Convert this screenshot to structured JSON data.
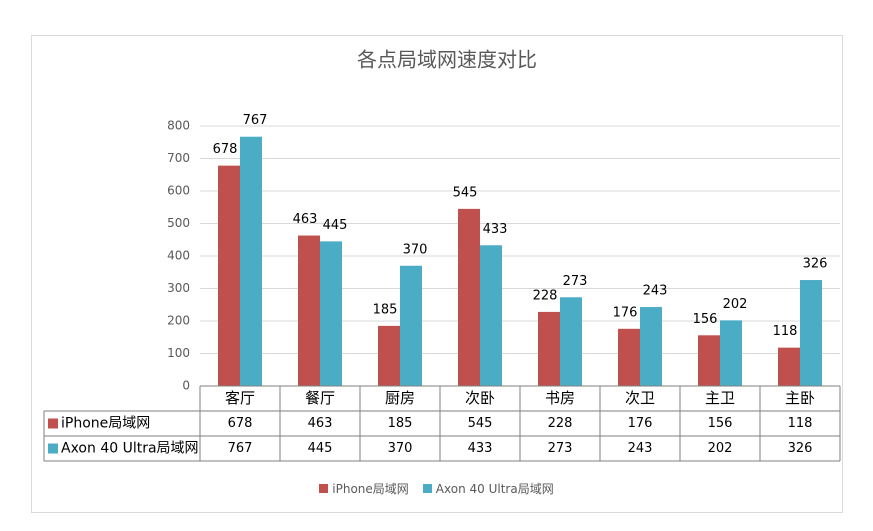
{
  "chart_data": {
    "type": "bar",
    "title": "各点局域网速度对比",
    "categories": [
      "客厅",
      "餐厅",
      "厨房",
      "次卧",
      "书房",
      "次卫",
      "主卫",
      "主卧"
    ],
    "series": [
      {
        "name": "iPhone局域网",
        "color": "#c0504d",
        "values": [
          678,
          463,
          185,
          545,
          228,
          176,
          156,
          118
        ]
      },
      {
        "name": "Axon 40 Ultra局域网",
        "color": "#4bacc6",
        "values": [
          767,
          445,
          370,
          433,
          273,
          243,
          202,
          326
        ]
      }
    ],
    "ylim": [
      0,
      800
    ],
    "yticks": [
      0,
      100,
      200,
      300,
      400,
      500,
      600,
      700,
      800
    ],
    "grid": true,
    "legend": "bottom"
  }
}
